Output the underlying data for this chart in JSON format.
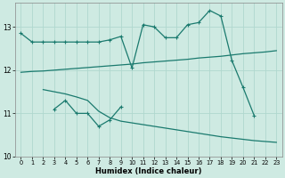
{
  "xlabel": "Humidex (Indice chaleur)",
  "x_range": [
    0,
    23
  ],
  "ylim": [
    10.0,
    13.55
  ],
  "yticks": [
    10,
    11,
    12,
    13
  ],
  "xticks": [
    0,
    1,
    2,
    3,
    4,
    5,
    6,
    7,
    8,
    9,
    10,
    11,
    12,
    13,
    14,
    15,
    16,
    17,
    18,
    19,
    20,
    21,
    22,
    23
  ],
  "bg_color": "#ceeae2",
  "line_color": "#1a7a6e",
  "grid_color": "#b0d8ce",
  "figsize": [
    3.2,
    2.0
  ],
  "dpi": 100,
  "line1_x": [
    0,
    1,
    2,
    3,
    4,
    5,
    6,
    7,
    8,
    9,
    10,
    11,
    12,
    13,
    14,
    15,
    16,
    17,
    18,
    19,
    20,
    21
  ],
  "line1_y": [
    12.85,
    12.65,
    12.65,
    12.65,
    12.65,
    12.65,
    12.65,
    12.65,
    12.7,
    12.78,
    12.05,
    13.05,
    13.0,
    12.75,
    12.75,
    13.05,
    13.1,
    13.38,
    13.25,
    12.22,
    11.6,
    10.95
  ],
  "line2_x": [
    0,
    1,
    2,
    3,
    4,
    5,
    6,
    7,
    8,
    9,
    10,
    11,
    12,
    13,
    14,
    15,
    16,
    17,
    18,
    19,
    20,
    21,
    22,
    23
  ],
  "line2_y": [
    11.95,
    11.97,
    11.98,
    12.0,
    12.02,
    12.04,
    12.06,
    12.08,
    12.1,
    12.12,
    12.14,
    12.17,
    12.19,
    12.21,
    12.23,
    12.25,
    12.28,
    12.3,
    12.32,
    12.35,
    12.38,
    12.4,
    12.42,
    12.45
  ],
  "line3_x": [
    3,
    4,
    5,
    6,
    7,
    8,
    9
  ],
  "line3_y": [
    11.1,
    11.3,
    11.0,
    11.0,
    10.7,
    10.85,
    11.15
  ],
  "line4_x": [
    2,
    3,
    4,
    5,
    6,
    7,
    8,
    9,
    10,
    11,
    12,
    13,
    14,
    15,
    16,
    17,
    18,
    19,
    20,
    21,
    22,
    23
  ],
  "line4_y": [
    11.55,
    11.5,
    11.45,
    11.38,
    11.3,
    11.05,
    10.9,
    10.82,
    10.78,
    10.74,
    10.7,
    10.66,
    10.62,
    10.58,
    10.54,
    10.5,
    10.46,
    10.43,
    10.4,
    10.37,
    10.35,
    10.33
  ]
}
